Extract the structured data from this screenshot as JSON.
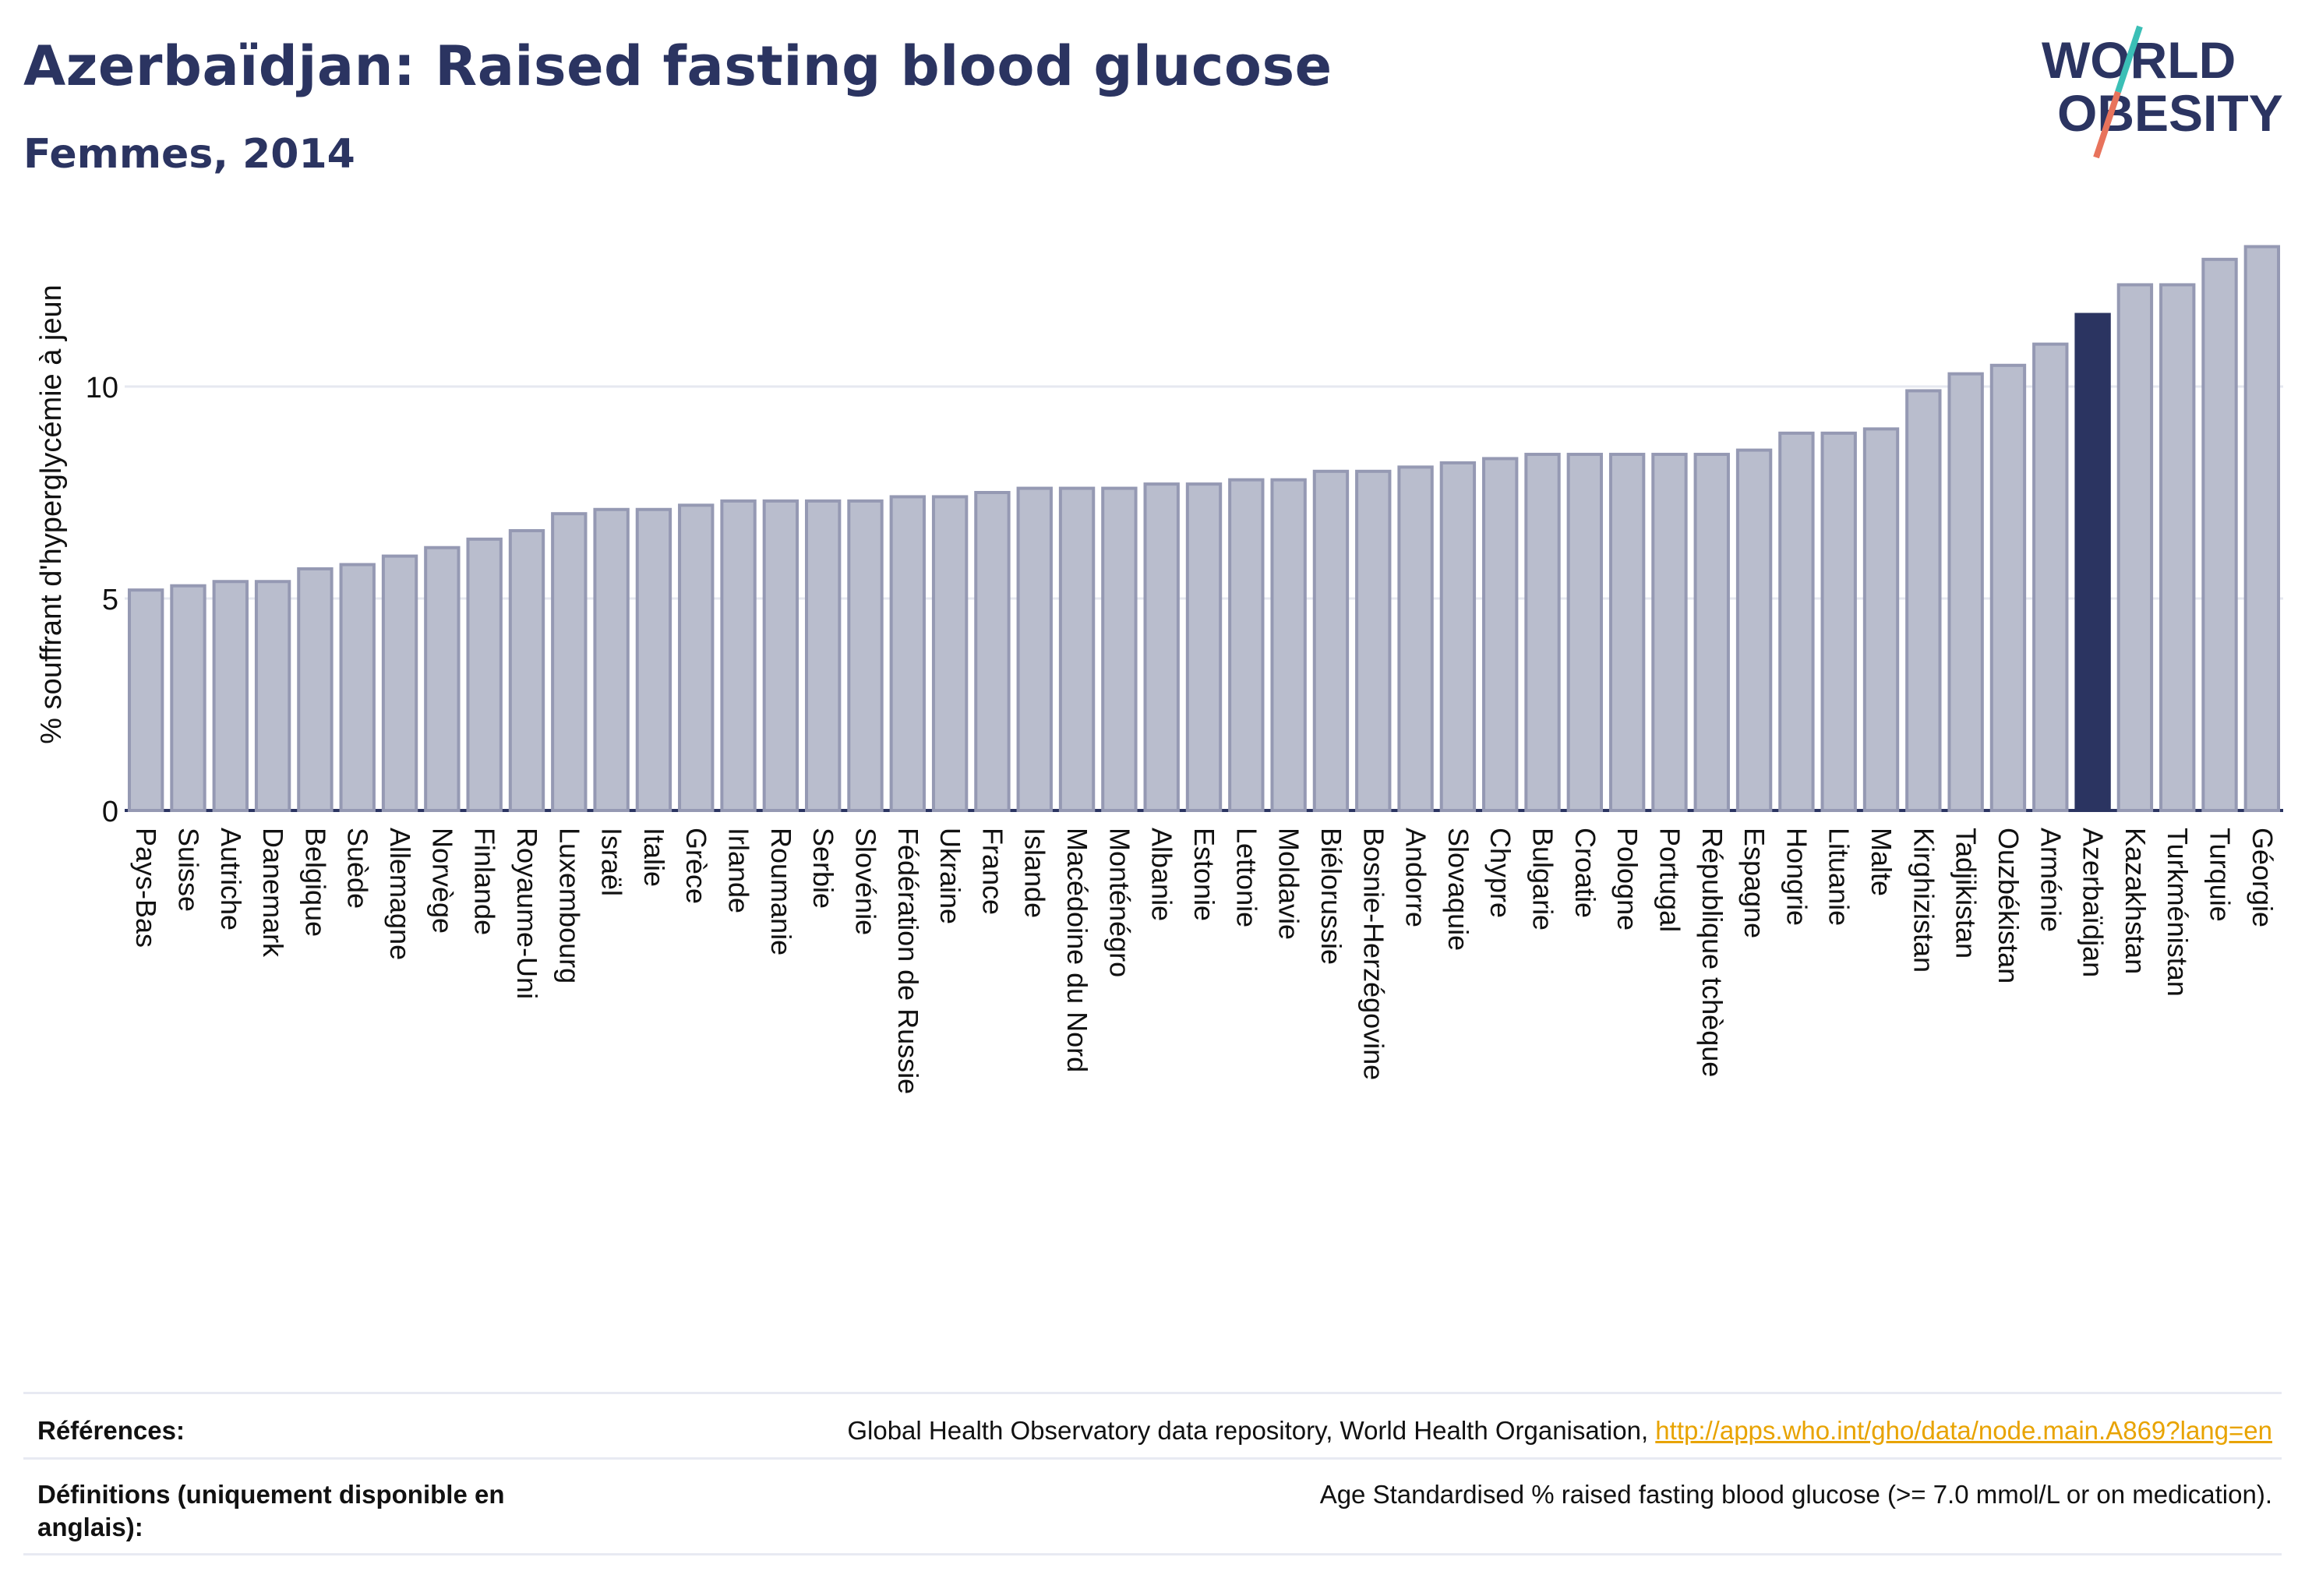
{
  "header": {
    "title": "Azerbaïdjan: Raised fasting blood glucose",
    "subtitle": "Femmes, 2014"
  },
  "logo": {
    "line1": "WORLD",
    "line2": "OBESITY"
  },
  "colors": {
    "highlight": "#2b3461",
    "bar_fill": "#b9bdcd",
    "bar_stroke": "#9599b3",
    "grid": "#e6e8f0",
    "logo_teal": "#3bbfb6",
    "logo_coral": "#e8735c",
    "link": "#e8a300"
  },
  "chart_data": {
    "type": "bar",
    "ylabel": "% souffrant d'hyperglycémie à jeun",
    "xlabel": "",
    "ylim": [
      0,
      14
    ],
    "yticks": [
      0,
      5,
      10
    ],
    "grid": true,
    "highlight": "Azerbaïdjan",
    "categories": [
      "Pays-Bas",
      "Suisse",
      "Autriche",
      "Danemark",
      "Belgique",
      "Suède",
      "Allemagne",
      "Norvège",
      "Finlande",
      "Royaume-Uni",
      "Luxembourg",
      "Israël",
      "Italie",
      "Grèce",
      "Irlande",
      "Roumanie",
      "Serbie",
      "Slovénie",
      "Fédération de Russie",
      "Ukraine",
      "France",
      "Islande",
      "Macédoine du Nord",
      "Monténégro",
      "Albanie",
      "Estonie",
      "Lettonie",
      "Moldavie",
      "Biélorussie",
      "Bosnie-Herzégovine",
      "Andorre",
      "Slovaquie",
      "Chypre",
      "Bulgarie",
      "Croatie",
      "Pologne",
      "Portugal",
      "République tchèque",
      "Espagne",
      "Hongrie",
      "Lituanie",
      "Malte",
      "Kirghizistan",
      "Tadjikistan",
      "Ouzbékistan",
      "Arménie",
      "Azerbaïdjan",
      "Kazakhstan",
      "Turkménistan",
      "Turquie",
      "Géorgie"
    ],
    "values": [
      5.2,
      5.3,
      5.4,
      5.4,
      5.7,
      5.8,
      6.0,
      6.2,
      6.4,
      6.6,
      7.0,
      7.1,
      7.1,
      7.2,
      7.3,
      7.3,
      7.3,
      7.3,
      7.4,
      7.4,
      7.5,
      7.6,
      7.6,
      7.6,
      7.7,
      7.7,
      7.8,
      7.8,
      8.0,
      8.0,
      8.1,
      8.2,
      8.3,
      8.4,
      8.4,
      8.4,
      8.4,
      8.4,
      8.5,
      8.9,
      8.9,
      9.0,
      9.9,
      10.3,
      10.5,
      11.0,
      11.7,
      12.4,
      12.4,
      13.0,
      13.3
    ]
  },
  "references": {
    "ref_label": "Références:",
    "ref_text": "Global Health Observatory data repository, World Health Organisation, ",
    "ref_link": "http://apps.who.int/gho/data/node.main.A869?lang=en",
    "def_label": "Définitions (uniquement disponible en anglais):",
    "def_text": "Age Standardised % raised fasting blood glucose (>= 7.0 mmol/L or on medication)."
  }
}
